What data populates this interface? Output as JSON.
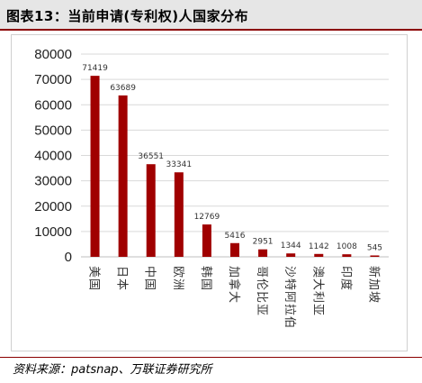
{
  "header": {
    "title": "图表13：当前申请(专利权)人国家分布"
  },
  "footer": {
    "source": "资料来源：patsnap、万联证券研究所"
  },
  "colors": {
    "bar": "#a00000",
    "title_rule": "#8b0000",
    "title_bg": "#e6e6e6",
    "gridline": "#d9d9d9"
  },
  "chart_data": {
    "type": "bar",
    "title": "",
    "xlabel": "",
    "ylabel": "",
    "ylim": [
      0,
      80000
    ],
    "yticks": [
      0,
      10000,
      20000,
      30000,
      40000,
      50000,
      60000,
      70000,
      80000
    ],
    "grid": true,
    "categories": [
      "美国",
      "日本",
      "中国",
      "欧洲",
      "韩国",
      "加拿大",
      "哥伦比亚",
      "沙特阿拉伯",
      "澳大利亚",
      "印度",
      "新加坡"
    ],
    "values": [
      71419,
      63689,
      36551,
      33341,
      12769,
      5416,
      2951,
      1344,
      1142,
      1008,
      545
    ]
  }
}
